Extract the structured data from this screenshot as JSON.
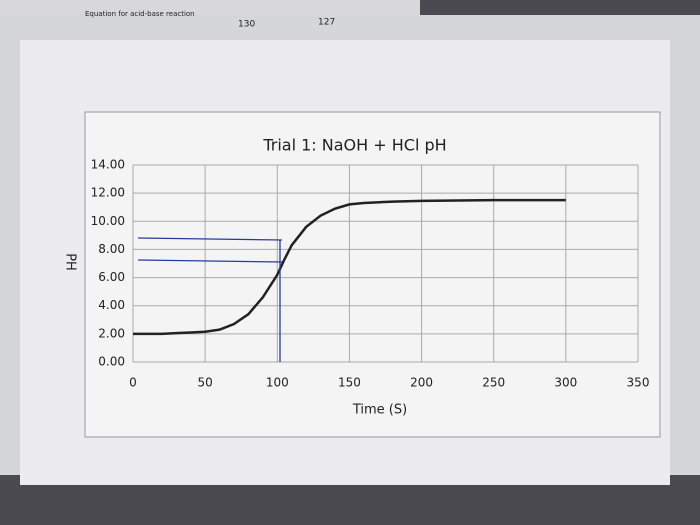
{
  "notes": [
    "Equation for acid-base reaction",
    "130",
    "127"
  ],
  "chart_data": {
    "type": "line",
    "title": "Trial 1: NaOH + HCl pH",
    "x_label": "Time (S)",
    "y_label": "PH",
    "x": [
      0,
      10,
      20,
      30,
      40,
      50,
      60,
      70,
      80,
      90,
      100,
      105,
      110,
      120,
      130,
      140,
      150,
      160,
      180,
      200,
      250,
      300
    ],
    "series": [
      {
        "name": "pH",
        "color": "#222222",
        "values": [
          2.0,
          2.0,
          2.0,
          2.05,
          2.1,
          2.15,
          2.3,
          2.7,
          3.4,
          4.6,
          6.2,
          7.3,
          8.3,
          9.6,
          10.4,
          10.9,
          11.2,
          11.3,
          11.4,
          11.45,
          11.5,
          11.5
        ]
      }
    ],
    "xlim": [
      0,
      350
    ],
    "xticks": [
      0,
      50,
      100,
      150,
      200,
      250,
      300,
      350
    ],
    "ylim": [
      0,
      14
    ],
    "yticks": [
      {
        "value": 0,
        "label": "0.00"
      },
      {
        "value": 2,
        "label": "2.00"
      },
      {
        "value": 4,
        "label": "4.00"
      },
      {
        "value": 6,
        "label": "6.00"
      },
      {
        "value": 8,
        "label": "8.00"
      },
      {
        "value": 10,
        "label": "10.00"
      },
      {
        "value": 12,
        "label": "12.00"
      },
      {
        "value": 14,
        "label": "14.00"
      }
    ],
    "grid": true
  }
}
